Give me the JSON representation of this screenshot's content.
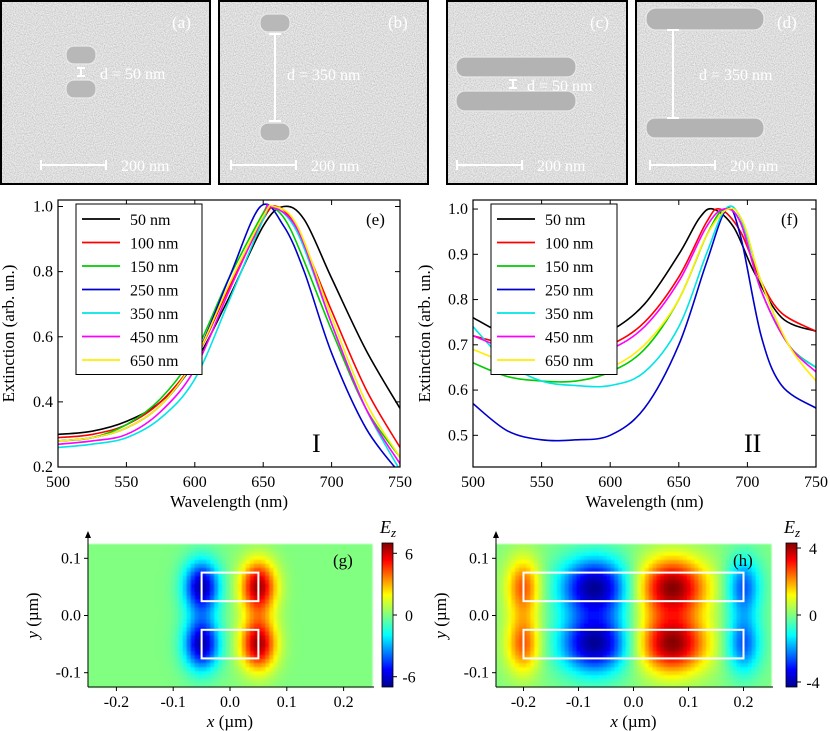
{
  "sem_panels": [
    {
      "label": "(a)",
      "gap_label": "d = 50 nm",
      "scale_label": "200 nm"
    },
    {
      "label": "(b)",
      "gap_label": "d = 350 nm",
      "scale_label": "200 nm"
    },
    {
      "label": "(c)",
      "gap_label": "d = 50 nm",
      "scale_label": "200 nm"
    },
    {
      "label": "(d)",
      "gap_label": "d = 350 nm",
      "scale_label": "200 nm"
    }
  ],
  "chart_data": [
    {
      "type": "line",
      "panel": "(e)",
      "corner_label": "I",
      "xlabel": "Wavelength (nm)",
      "ylabel": "Extinction (arb. un.)",
      "xlim": [
        500,
        750
      ],
      "ylim": [
        0.2,
        1.02
      ],
      "xticks": [
        500,
        550,
        600,
        650,
        700,
        750
      ],
      "yticks": [
        0.2,
        0.4,
        0.6,
        0.8,
        1.0
      ],
      "xtick_labels": [
        "500",
        "550",
        "600",
        "650",
        "700",
        "750"
      ],
      "ytick_labels": [
        "0.2",
        "0.4",
        "0.6",
        "0.8",
        "1.0"
      ],
      "legend_position": "top-left",
      "series": [
        {
          "name": "50 nm",
          "color": "#000000",
          "x": [
            500,
            525,
            550,
            575,
            600,
            625,
            650,
            665,
            680,
            700,
            725,
            750
          ],
          "y": [
            0.3,
            0.31,
            0.34,
            0.4,
            0.52,
            0.72,
            0.94,
            1.0,
            0.96,
            0.78,
            0.56,
            0.38
          ]
        },
        {
          "name": "100 nm",
          "color": "#ff0000",
          "x": [
            500,
            525,
            550,
            575,
            600,
            625,
            650,
            660,
            675,
            700,
            725,
            750
          ],
          "y": [
            0.29,
            0.3,
            0.33,
            0.4,
            0.53,
            0.75,
            0.96,
            1.0,
            0.93,
            0.68,
            0.44,
            0.26
          ]
        },
        {
          "name": "150 nm",
          "color": "#00cc00",
          "x": [
            500,
            525,
            550,
            575,
            600,
            625,
            650,
            655,
            670,
            700,
            725,
            750
          ],
          "y": [
            0.28,
            0.29,
            0.33,
            0.41,
            0.55,
            0.78,
            0.98,
            1.0,
            0.93,
            0.62,
            0.38,
            0.23
          ]
        },
        {
          "name": "250 nm",
          "color": "#0000cc",
          "x": [
            500,
            525,
            550,
            575,
            600,
            625,
            648,
            665,
            680,
            700,
            725,
            750
          ],
          "y": [
            0.28,
            0.29,
            0.32,
            0.39,
            0.53,
            0.78,
            1.0,
            0.94,
            0.8,
            0.55,
            0.32,
            0.18
          ]
        },
        {
          "name": "350 nm",
          "color": "#00e5e5",
          "x": [
            500,
            525,
            550,
            575,
            600,
            625,
            650,
            657,
            675,
            700,
            725,
            750
          ],
          "y": [
            0.26,
            0.27,
            0.29,
            0.35,
            0.47,
            0.71,
            0.96,
            1.0,
            0.92,
            0.64,
            0.38,
            0.19
          ]
        },
        {
          "name": "450 nm",
          "color": "#ff00ff",
          "x": [
            500,
            525,
            550,
            575,
            600,
            625,
            650,
            655,
            675,
            700,
            725,
            750
          ],
          "y": [
            0.27,
            0.28,
            0.3,
            0.37,
            0.5,
            0.74,
            0.97,
            1.0,
            0.93,
            0.64,
            0.38,
            0.21
          ]
        },
        {
          "name": "650 nm",
          "color": "#ffee00",
          "x": [
            500,
            525,
            550,
            575,
            600,
            625,
            650,
            658,
            675,
            700,
            725,
            750
          ],
          "y": [
            0.28,
            0.29,
            0.32,
            0.39,
            0.53,
            0.76,
            0.97,
            1.0,
            0.94,
            0.66,
            0.4,
            0.23
          ]
        }
      ]
    },
    {
      "type": "line",
      "panel": "(f)",
      "corner_label": "II",
      "xlabel": "Wavelength (nm)",
      "ylabel": "Extinction (arb. un.)",
      "xlim": [
        500,
        750
      ],
      "ylim": [
        0.43,
        1.02
      ],
      "xticks": [
        500,
        550,
        600,
        650,
        700,
        750
      ],
      "yticks": [
        0.5,
        0.6,
        0.7,
        0.8,
        0.9,
        1.0
      ],
      "xtick_labels": [
        "500",
        "550",
        "600",
        "650",
        "700",
        "750"
      ],
      "ytick_labels": [
        "0.5",
        "0.6",
        "0.7",
        "0.8",
        "0.9",
        "1.0"
      ],
      "legend_position": "top-left",
      "series": [
        {
          "name": "50 nm",
          "color": "#000000",
          "x": [
            500,
            525,
            550,
            575,
            600,
            625,
            650,
            665,
            675,
            690,
            705,
            725,
            750
          ],
          "y": [
            0.76,
            0.72,
            0.7,
            0.7,
            0.73,
            0.79,
            0.9,
            0.98,
            1.0,
            0.96,
            0.86,
            0.76,
            0.73
          ]
        },
        {
          "name": "100 nm",
          "color": "#ff0000",
          "x": [
            500,
            525,
            550,
            575,
            600,
            625,
            650,
            670,
            680,
            695,
            710,
            725,
            750
          ],
          "y": [
            0.72,
            0.7,
            0.68,
            0.68,
            0.7,
            0.75,
            0.85,
            0.97,
            1.0,
            0.95,
            0.84,
            0.77,
            0.73
          ]
        },
        {
          "name": "150 nm",
          "color": "#00cc00",
          "x": [
            500,
            525,
            550,
            575,
            600,
            625,
            650,
            670,
            683,
            695,
            710,
            730,
            750
          ],
          "y": [
            0.66,
            0.63,
            0.62,
            0.62,
            0.64,
            0.69,
            0.8,
            0.94,
            1.0,
            0.97,
            0.82,
            0.7,
            0.65
          ]
        },
        {
          "name": "250 nm",
          "color": "#0000cc",
          "x": [
            500,
            525,
            550,
            575,
            600,
            625,
            650,
            670,
            685,
            695,
            710,
            725,
            750
          ],
          "y": [
            0.57,
            0.51,
            0.49,
            0.49,
            0.5,
            0.56,
            0.7,
            0.88,
            1.0,
            0.94,
            0.72,
            0.61,
            0.56
          ]
        },
        {
          "name": "350 nm",
          "color": "#00e5e5",
          "x": [
            500,
            525,
            550,
            575,
            600,
            625,
            650,
            670,
            684,
            695,
            710,
            730,
            750
          ],
          "y": [
            0.74,
            0.66,
            0.62,
            0.61,
            0.61,
            0.64,
            0.74,
            0.9,
            1.0,
            0.98,
            0.84,
            0.7,
            0.65
          ]
        },
        {
          "name": "450 nm",
          "color": "#ff00ff",
          "x": [
            500,
            525,
            550,
            575,
            600,
            625,
            650,
            670,
            683,
            695,
            710,
            730,
            750
          ],
          "y": [
            0.72,
            0.69,
            0.67,
            0.67,
            0.69,
            0.74,
            0.84,
            0.96,
            1.0,
            0.97,
            0.82,
            0.7,
            0.64
          ]
        },
        {
          "name": "650 nm",
          "color": "#ffee00",
          "x": [
            500,
            525,
            550,
            575,
            600,
            625,
            650,
            670,
            686,
            697,
            710,
            730,
            750
          ],
          "y": [
            0.69,
            0.66,
            0.64,
            0.64,
            0.65,
            0.7,
            0.8,
            0.94,
            1.0,
            0.97,
            0.84,
            0.7,
            0.62
          ]
        }
      ]
    },
    {
      "type": "heatmap",
      "panel": "(g)",
      "colorbar_title": "E",
      "colorbar_subscript": "z",
      "xlabel_var": "x",
      "xlabel_unit": " (µm)",
      "ylabel_var": "y",
      "ylabel_unit": " (µm)",
      "xlim": [
        -0.25,
        0.25
      ],
      "ylim": [
        -0.125,
        0.125
      ],
      "xticks": [
        -0.2,
        -0.1,
        0.0,
        0.1,
        0.2
      ],
      "yticks": [
        -0.1,
        0.0,
        0.1
      ],
      "xtick_labels": [
        "-0.2",
        "-0.1",
        "0.0",
        "0.1",
        "0.2"
      ],
      "ytick_labels": [
        "-0.1",
        "0.0",
        "0.1"
      ],
      "colorbar_range": [
        -7,
        7
      ],
      "colorbar_ticks": [
        -6,
        0,
        6
      ],
      "colorbar_tick_labels": [
        "-6",
        "0",
        "6"
      ],
      "rod_half_length": 0.05,
      "rod_half_width": 0.025,
      "rod_centers_y": [
        0.05,
        -0.05
      ]
    },
    {
      "type": "heatmap",
      "panel": "(h)",
      "colorbar_title": "E",
      "colorbar_subscript": "z",
      "xlabel_var": "x",
      "xlabel_unit": " (µm)",
      "ylabel_var": "y",
      "ylabel_unit": " (µm)",
      "xlim": [
        -0.25,
        0.25
      ],
      "ylim": [
        -0.125,
        0.125
      ],
      "xticks": [
        -0.2,
        -0.1,
        0.0,
        0.1,
        0.2
      ],
      "yticks": [
        -0.1,
        0.0,
        0.1
      ],
      "xtick_labels": [
        "-0.2",
        "-0.1",
        "0.0",
        "0.1",
        "0.2"
      ],
      "ytick_labels": [
        "-0.1",
        "0.0",
        "0.1"
      ],
      "colorbar_range": [
        -4.3,
        4.3
      ],
      "colorbar_ticks": [
        -4,
        0,
        4
      ],
      "colorbar_tick_labels": [
        "-4",
        "0",
        "4"
      ],
      "rod_half_length": 0.2,
      "rod_half_width": 0.025,
      "rod_centers_y": [
        0.05,
        -0.05
      ]
    }
  ]
}
